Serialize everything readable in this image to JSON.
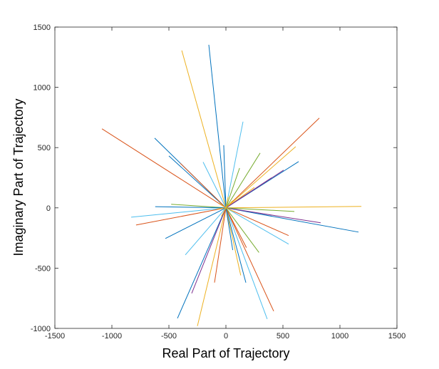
{
  "chart_data": {
    "type": "line",
    "xlabel": "Real Part of Trajectory",
    "ylabel": "Imaginary Part of Trajectory",
    "xlim": [
      -1500,
      1500
    ],
    "ylim": [
      -1000,
      1500
    ],
    "xticks": [
      -1500,
      -1000,
      -500,
      0,
      500,
      1000,
      1500
    ],
    "yticks": [
      -1000,
      -500,
      0,
      500,
      1000,
      1500
    ],
    "grid": false,
    "series": [
      {
        "color": "#0072BD",
        "x": [
          0,
          -150
        ],
        "y": [
          0,
          1353
        ]
      },
      {
        "color": "#EDB120",
        "x": [
          0,
          -387
        ],
        "y": [
          0,
          1306
        ]
      },
      {
        "color": "#D95319",
        "x": [
          0,
          -1087
        ],
        "y": [
          0,
          656
        ]
      },
      {
        "color": "#D95319",
        "x": [
          0,
          819
        ],
        "y": [
          0,
          745
        ]
      },
      {
        "color": "#0072BD",
        "x": [
          0,
          -625
        ],
        "y": [
          0,
          579
        ]
      },
      {
        "color": "#4DBEEE",
        "x": [
          0,
          150
        ],
        "y": [
          0,
          715
        ]
      },
      {
        "color": "#0072BD",
        "x": [
          0,
          638
        ],
        "y": [
          0,
          384
        ]
      },
      {
        "color": "#EDB120",
        "x": [
          0,
          1188
        ],
        "y": [
          0,
          12
        ]
      },
      {
        "color": "#0072BD",
        "x": [
          0,
          1163
        ],
        "y": [
          0,
          -201
        ]
      },
      {
        "color": "#7E2F8E",
        "x": [
          0,
          831
        ],
        "y": [
          0,
          -124
        ]
      },
      {
        "color": "#4DBEEE",
        "x": [
          0,
          -831
        ],
        "y": [
          0,
          -77
        ]
      },
      {
        "color": "#D95319",
        "x": [
          0,
          -788
        ],
        "y": [
          0,
          -142
        ]
      },
      {
        "color": "#0072BD",
        "x": [
          0,
          -531
        ],
        "y": [
          0,
          -254
        ]
      },
      {
        "color": "#0072BD",
        "x": [
          0,
          -425
        ],
        "y": [
          0,
          -916
        ]
      },
      {
        "color": "#EDB120",
        "x": [
          0,
          -250
        ],
        "y": [
          0,
          -981
        ]
      },
      {
        "color": "#4DBEEE",
        "x": [
          0,
          362
        ],
        "y": [
          0,
          -922
        ]
      },
      {
        "color": "#D95319",
        "x": [
          0,
          419
        ],
        "y": [
          0,
          -857
        ]
      },
      {
        "color": "#7E2F8E",
        "x": [
          0,
          -300
        ],
        "y": [
          0,
          -709
        ]
      },
      {
        "color": "#0072BD",
        "x": [
          0,
          175
        ],
        "y": [
          0,
          -620
        ]
      },
      {
        "color": "#4DBEEE",
        "x": [
          0,
          550
        ],
        "y": [
          0,
          -301
        ]
      },
      {
        "color": "#D95319",
        "x": [
          0,
          550
        ],
        "y": [
          0,
          -230
        ]
      },
      {
        "color": "#77AC30",
        "x": [
          0,
          600
        ],
        "y": [
          0,
          -30
        ]
      },
      {
        "color": "#77AC30",
        "x": [
          0,
          300
        ],
        "y": [
          0,
          455
        ]
      },
      {
        "color": "#7E2F8E",
        "x": [
          0,
          506
        ],
        "y": [
          0,
          313
        ]
      },
      {
        "color": "#4DBEEE",
        "x": [
          0,
          -356
        ],
        "y": [
          0,
          -390
        ]
      },
      {
        "color": "#0072BD",
        "x": [
          0,
          -500
        ],
        "y": [
          0,
          431
        ]
      },
      {
        "color": "#0072BD",
        "x": [
          0,
          -19
        ],
        "y": [
          0,
          520
        ]
      },
      {
        "color": "#D95319",
        "x": [
          0,
          -400
        ],
        "y": [
          0,
          370
        ]
      },
      {
        "color": "#EDB120",
        "x": [
          0,
          612
        ],
        "y": [
          0,
          508
        ]
      },
      {
        "color": "#77AC30",
        "x": [
          0,
          -480
        ],
        "y": [
          0,
          30
        ]
      },
      {
        "color": "#0072BD",
        "x": [
          0,
          -620
        ],
        "y": [
          0,
          10
        ]
      },
      {
        "color": "#D95319",
        "x": [
          0,
          180
        ],
        "y": [
          0,
          -330
        ]
      },
      {
        "color": "#77AC30",
        "x": [
          0,
          290
        ],
        "y": [
          0,
          -370
        ]
      },
      {
        "color": "#EDB120",
        "x": [
          0,
          250
        ],
        "y": [
          0,
          170
        ]
      },
      {
        "color": "#4DBEEE",
        "x": [
          0,
          -200
        ],
        "y": [
          0,
          380
        ]
      },
      {
        "color": "#D95319",
        "x": [
          0,
          -100
        ],
        "y": [
          0,
          -620
        ]
      },
      {
        "color": "#EDB120",
        "x": [
          0,
          130
        ],
        "y": [
          0,
          -560
        ]
      },
      {
        "color": "#7E2F8E",
        "x": [
          0,
          400
        ],
        "y": [
          0,
          250
        ]
      },
      {
        "color": "#77AC30",
        "x": [
          0,
          120
        ],
        "y": [
          0,
          330
        ]
      },
      {
        "color": "#0072BD",
        "x": [
          0,
          60
        ],
        "y": [
          0,
          -350
        ]
      },
      {
        "color": "#EDB120",
        "x": [
          0,
          60
        ],
        "y": [
          0,
          60
        ]
      },
      {
        "color": "#EDB120",
        "x": [
          0,
          -60
        ],
        "y": [
          0,
          40
        ]
      },
      {
        "color": "#EDB120",
        "x": [
          0,
          -40
        ],
        "y": [
          0,
          -70
        ]
      },
      {
        "color": "#EDB120",
        "x": [
          0,
          70
        ],
        "y": [
          0,
          -30
        ]
      },
      {
        "color": "#EDB120",
        "x": [
          0,
          20
        ],
        "y": [
          0,
          90
        ]
      },
      {
        "color": "#EDB120",
        "x": [
          0,
          -80
        ],
        "y": [
          0,
          -10
        ]
      }
    ]
  }
}
